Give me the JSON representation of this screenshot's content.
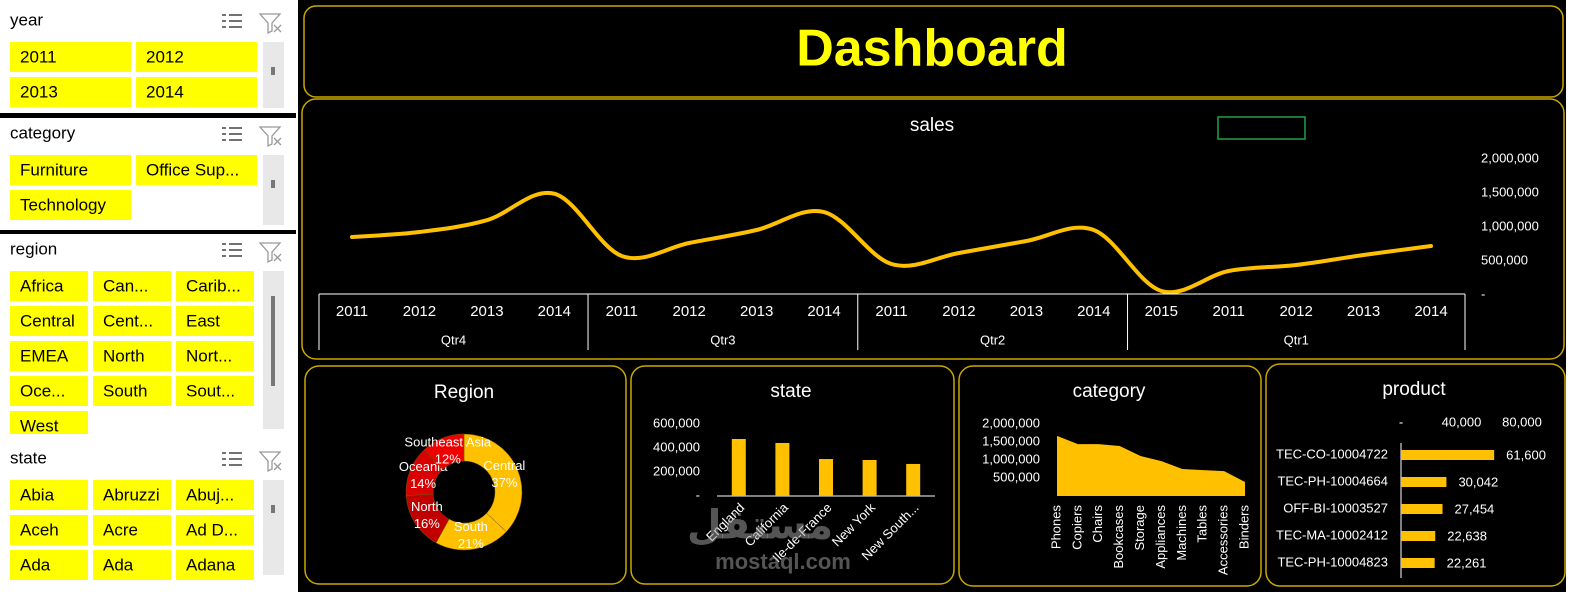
{
  "slicers": [
    {
      "title": "year",
      "items": [
        "2011",
        "2012",
        "2013",
        "2014"
      ]
    },
    {
      "title": "category",
      "items": [
        "Furniture",
        "Office Sup...",
        "Technology"
      ]
    },
    {
      "title": "region",
      "items": [
        "Africa",
        "Can...",
        "Carib...",
        "Central",
        "Cent...",
        "East",
        "EMEA",
        "North",
        "Nort...",
        "Oce...",
        "South",
        "Sout...",
        "West"
      ]
    },
    {
      "title": "state",
      "items": [
        "Abia",
        "Abruzzi",
        "Abuj...",
        "Aceh",
        "Acre",
        "Ad D...",
        "Ada",
        "Ada",
        "Adana"
      ]
    }
  ],
  "header": {
    "title": "Dashboard"
  },
  "watermark": [
    "مستقل",
    "mostaql.com"
  ],
  "chart_data": [
    {
      "type": "line",
      "title": "sales",
      "color": "#ffc000",
      "groups": [
        {
          "name": "Qtr4",
          "categories": [
            "2011",
            "2012",
            "2013",
            "2014"
          ]
        },
        {
          "name": "Qtr3",
          "categories": [
            "2011",
            "2012",
            "2013",
            "2014"
          ]
        },
        {
          "name": "Qtr2",
          "categories": [
            "2011",
            "2012",
            "2013",
            "2014"
          ]
        },
        {
          "name": "Qtr1",
          "categories": [
            "2015",
            "2011",
            "2012",
            "2013",
            "2014"
          ]
        }
      ],
      "values": [
        853000,
        926000,
        1100000,
        1490000,
        574000,
        765000,
        956000,
        1220000,
        456000,
        618000,
        794000,
        956000,
        59000,
        353000,
        441000,
        588000,
        720000
      ],
      "ylim": [
        0,
        2000000
      ],
      "yticks": [
        {
          "value": 0,
          "label": "-"
        },
        {
          "value": 500000,
          "label": "500,000"
        },
        {
          "value": 1000000,
          "label": "1,000,000"
        },
        {
          "value": 1500000,
          "label": "1,500,000"
        },
        {
          "value": 2000000,
          "label": "2,000,000"
        }
      ]
    },
    {
      "type": "pie",
      "title": "Region",
      "categories": [
        "Central",
        "South",
        "North",
        "Oceania",
        "Southeast Asia"
      ],
      "values": [
        37,
        21,
        16,
        14,
        12
      ],
      "value_labels": [
        "37%",
        "21%",
        "16%",
        "14%",
        "12%"
      ],
      "colors": [
        "#ffc000",
        "#ffc000",
        "#c00000",
        "#d80000",
        "#ee0000"
      ]
    },
    {
      "type": "bar",
      "title": "state",
      "color": "#ffc000",
      "categories": [
        "England",
        "California",
        "Ile-de-France",
        "New York",
        "New South..."
      ],
      "values": [
        475000,
        442000,
        308000,
        300000,
        267000
      ],
      "ylim": [
        0,
        600000
      ],
      "yticks": [
        {
          "value": 0,
          "label": "-"
        },
        {
          "value": 200000,
          "label": "200,000"
        },
        {
          "value": 400000,
          "label": "400,000"
        },
        {
          "value": 600000,
          "label": "600,000"
        }
      ]
    },
    {
      "type": "area",
      "title": "category",
      "color": "#ffc000",
      "categories": [
        "Phones",
        "Copiers",
        "Chairs",
        "Bookcases",
        "Storage",
        "Appliances",
        "Machines",
        "Tables",
        "Accessories",
        "Binders"
      ],
      "values": [
        1670000,
        1440000,
        1440000,
        1390000,
        1110000,
        970000,
        750000,
        720000,
        690000,
        390000
      ],
      "ylim": [
        0,
        2000000
      ],
      "yticks": [
        {
          "value": 500000,
          "label": "500,000"
        },
        {
          "value": 1000000,
          "label": "1,000,000"
        },
        {
          "value": 1500000,
          "label": "1,500,000"
        },
        {
          "value": 2000000,
          "label": "2,000,000"
        }
      ]
    },
    {
      "type": "hbar",
      "title": "product",
      "color": "#ffc000",
      "categories": [
        "TEC-CO-10004722",
        "TEC-PH-10004664",
        "OFF-BI-10003527",
        "TEC-MA-10002412",
        "TEC-PH-10004823"
      ],
      "values": [
        61600,
        30042,
        27454,
        22638,
        22261
      ],
      "value_labels": [
        "61,600",
        "30,042",
        "27,454",
        "22,638",
        "22,261"
      ],
      "xlim": [
        0,
        80000
      ],
      "xticks": [
        {
          "value": 0,
          "label": "-"
        },
        {
          "value": 40000,
          "label": "40,000"
        },
        {
          "value": 80000,
          "label": "80,000"
        }
      ]
    }
  ]
}
